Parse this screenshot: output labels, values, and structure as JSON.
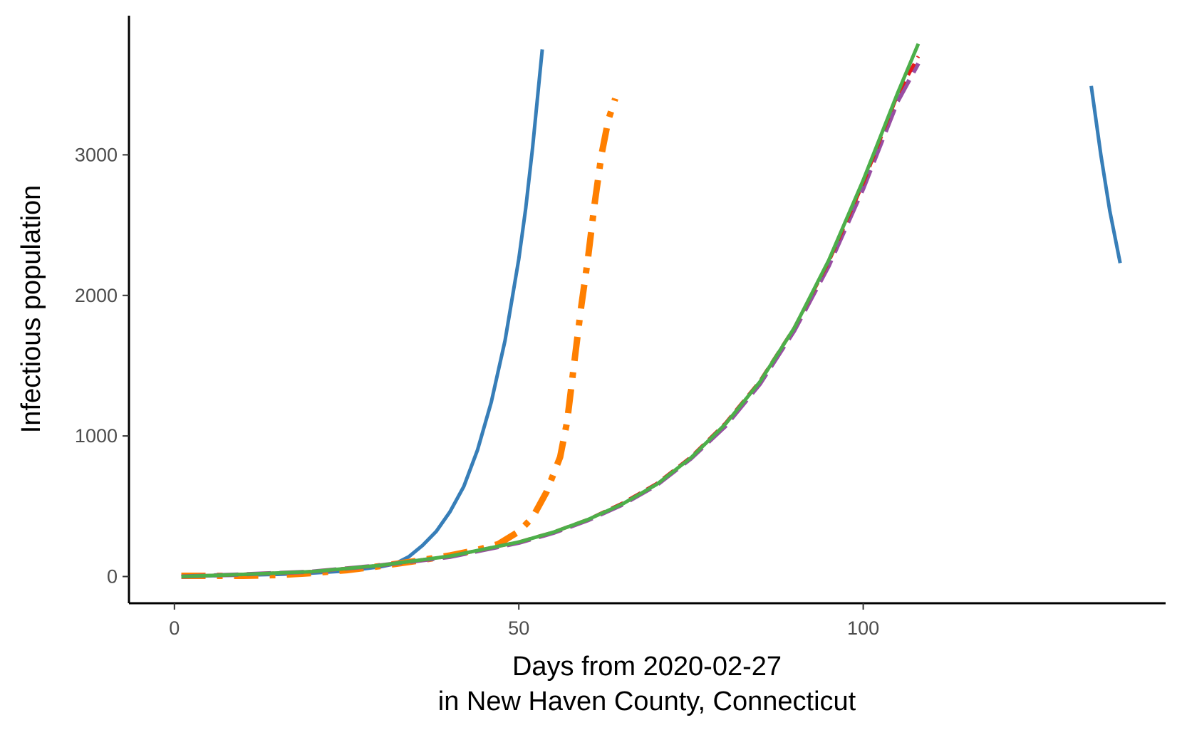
{
  "chart_data": {
    "type": "line",
    "title": "",
    "xlabel_line1": "Days from 2020-02-27",
    "xlabel_line2": "in New Haven County, Connecticut",
    "ylabel": "Infectious population",
    "xlim": [
      -6.6,
      143.9
    ],
    "ylim": [
      -190,
      3990
    ],
    "x_ticks": [
      0,
      50,
      100
    ],
    "y_ticks": [
      0,
      1000,
      2000,
      3000
    ],
    "grid": false,
    "legend": "none",
    "series": [
      {
        "color": "#377eb8",
        "dash": "solid",
        "width": 5,
        "points": [
          [
            1,
            0
          ],
          [
            5,
            5
          ],
          [
            10,
            10
          ],
          [
            15,
            15
          ],
          [
            20,
            25
          ],
          [
            25,
            40
          ],
          [
            30,
            70
          ],
          [
            32,
            90
          ],
          [
            34,
            140
          ],
          [
            36,
            220
          ],
          [
            38,
            320
          ],
          [
            40,
            460
          ],
          [
            42,
            640
          ],
          [
            44,
            900
          ],
          [
            46,
            1240
          ],
          [
            48,
            1680
          ],
          [
            50,
            2260
          ],
          [
            51,
            2620
          ],
          [
            52,
            3050
          ],
          [
            53,
            3550
          ],
          [
            53.4,
            3750
          ]
        ]
      },
      {
        "color": "#377eb8",
        "dash": "solid",
        "width": 5,
        "points": [
          [
            133.1,
            3490
          ],
          [
            134.5,
            3000
          ],
          [
            135.8,
            2600
          ],
          [
            137.3,
            2230
          ]
        ]
      },
      {
        "color": "#ff7f00",
        "dash": "dashdot",
        "width": 9,
        "points": [
          [
            1,
            5
          ],
          [
            5,
            5
          ],
          [
            10,
            5
          ],
          [
            15,
            10
          ],
          [
            20,
            25
          ],
          [
            25,
            45
          ],
          [
            30,
            75
          ],
          [
            35,
            110
          ],
          [
            40,
            150
          ],
          [
            44,
            190
          ],
          [
            47,
            230
          ],
          [
            50,
            320
          ],
          [
            52,
            420
          ],
          [
            54,
            600
          ],
          [
            56,
            850
          ],
          [
            57,
            1100
          ],
          [
            58,
            1500
          ],
          [
            59,
            1900
          ],
          [
            60,
            2250
          ],
          [
            61,
            2650
          ],
          [
            62,
            3000
          ],
          [
            63,
            3250
          ],
          [
            64,
            3400
          ]
        ]
      },
      {
        "color": "#984ea3",
        "dash": "longdash",
        "width": 6,
        "points": [
          [
            1,
            0
          ],
          [
            10,
            15
          ],
          [
            20,
            35
          ],
          [
            30,
            80
          ],
          [
            40,
            140
          ],
          [
            50,
            240
          ],
          [
            55,
            310
          ],
          [
            60,
            400
          ],
          [
            65,
            510
          ],
          [
            70,
            650
          ],
          [
            75,
            840
          ],
          [
            80,
            1070
          ],
          [
            85,
            1370
          ],
          [
            90,
            1750
          ],
          [
            95,
            2210
          ],
          [
            100,
            2760
          ],
          [
            105,
            3380
          ],
          [
            108,
            3650
          ]
        ]
      },
      {
        "color": "#e41a1c",
        "dash": "dashed",
        "width": 5,
        "points": [
          [
            1,
            0
          ],
          [
            10,
            15
          ],
          [
            20,
            35
          ],
          [
            30,
            80
          ],
          [
            40,
            145
          ],
          [
            50,
            245
          ],
          [
            55,
            315
          ],
          [
            60,
            405
          ],
          [
            65,
            520
          ],
          [
            70,
            660
          ],
          [
            75,
            850
          ],
          [
            80,
            1090
          ],
          [
            85,
            1390
          ],
          [
            90,
            1770
          ],
          [
            95,
            2240
          ],
          [
            100,
            2800
          ],
          [
            105,
            3430
          ],
          [
            108,
            3700
          ]
        ]
      },
      {
        "color": "#4daf4a",
        "dash": "solid",
        "width": 5,
        "points": [
          [
            1,
            0
          ],
          [
            10,
            15
          ],
          [
            20,
            35
          ],
          [
            30,
            80
          ],
          [
            40,
            145
          ],
          [
            50,
            245
          ],
          [
            55,
            315
          ],
          [
            60,
            405
          ],
          [
            65,
            515
          ],
          [
            70,
            655
          ],
          [
            75,
            845
          ],
          [
            80,
            1085
          ],
          [
            85,
            1385
          ],
          [
            90,
            1770
          ],
          [
            95,
            2250
          ],
          [
            100,
            2820
          ],
          [
            105,
            3440
          ],
          [
            108,
            3790
          ]
        ]
      }
    ]
  }
}
